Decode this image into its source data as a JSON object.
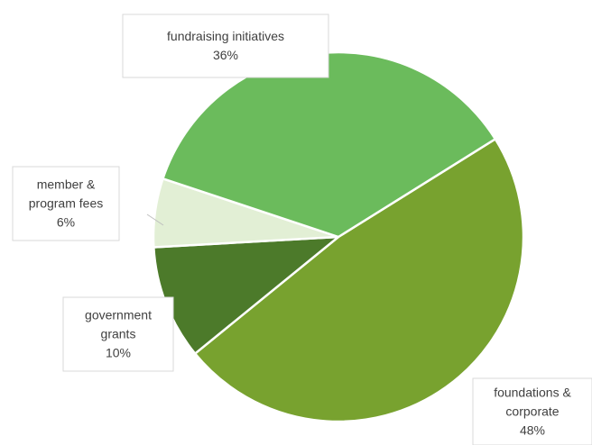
{
  "chart_data": {
    "type": "pie",
    "title": "",
    "slices": [
      {
        "label": "foundations & corporate",
        "label_lines": [
          "foundations &",
          "corporate",
          "48%"
        ],
        "value": 48,
        "color": "#78a22f"
      },
      {
        "label": "government grants",
        "label_lines": [
          "government",
          "grants",
          "10%"
        ],
        "value": 10,
        "color": "#4c7a2a"
      },
      {
        "label": "member & program fees",
        "label_lines": [
          "member &",
          "program fees",
          "6%"
        ],
        "value": 6,
        "color": "#e2efd5"
      },
      {
        "label": "fundraising initiatives",
        "label_lines": [
          "fundraising initiatives",
          "36%"
        ],
        "value": 36,
        "color": "#6bbb5c"
      }
    ],
    "legend": "none",
    "data_labels": "callouts"
  }
}
